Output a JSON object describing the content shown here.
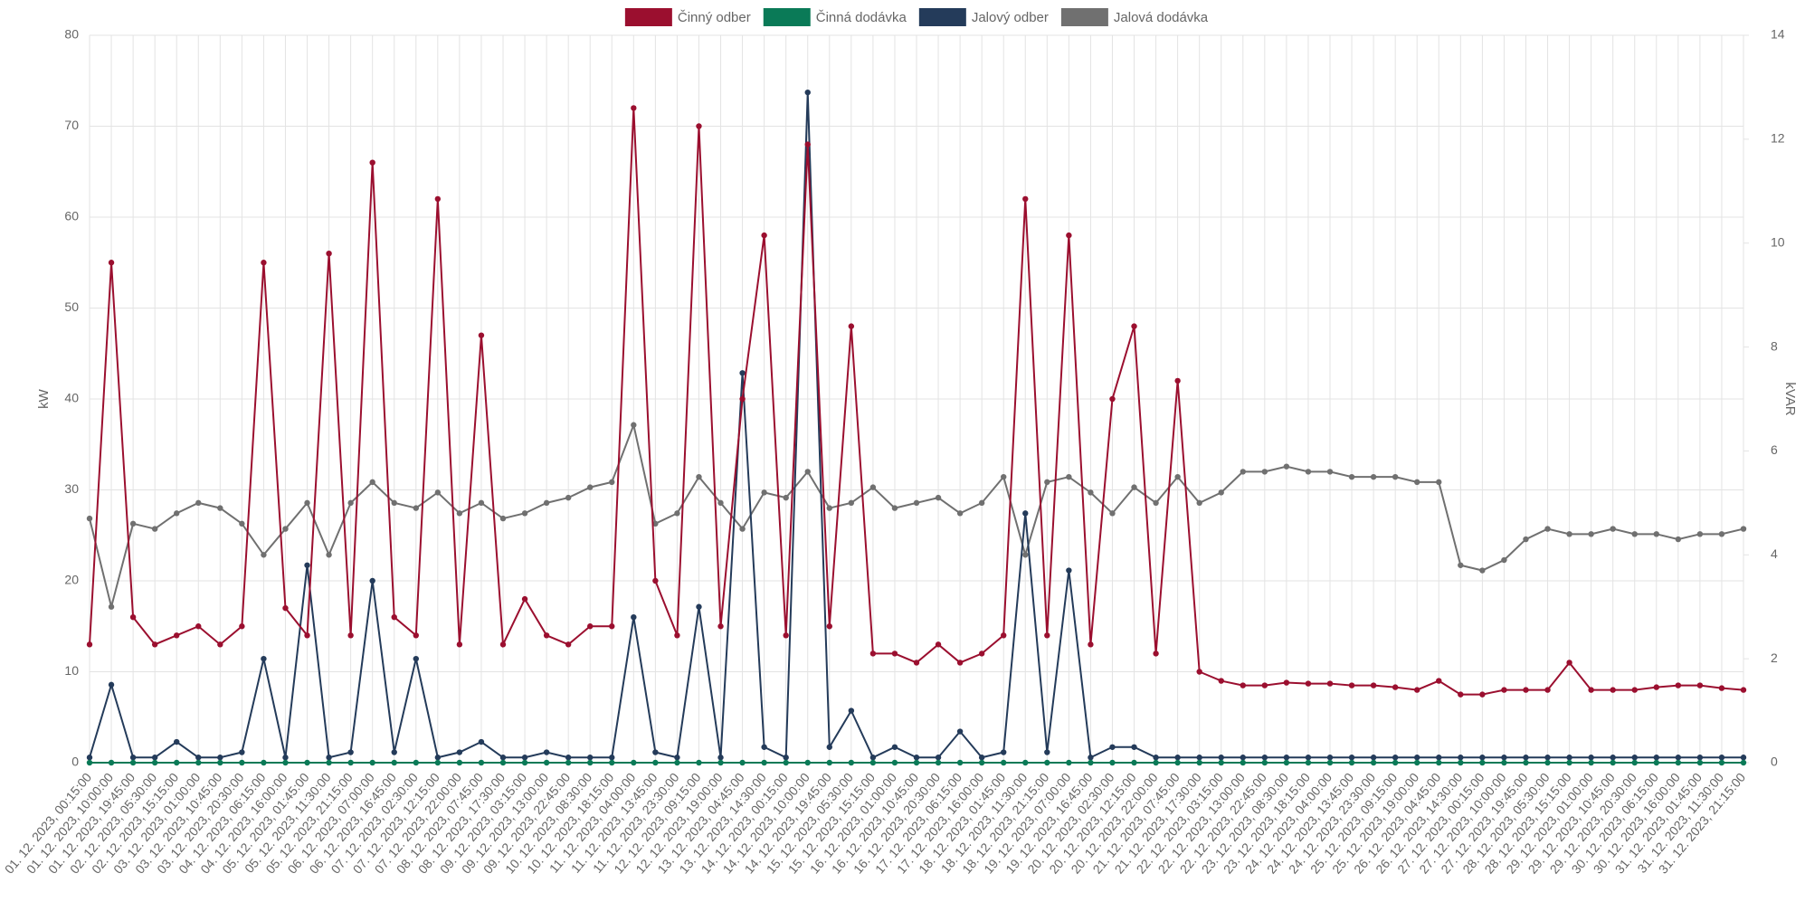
{
  "chart_data": {
    "type": "line",
    "y_label": "kW",
    "y2_label": "kVAR",
    "ylim": [
      0,
      80
    ],
    "yticks": [
      0,
      10,
      20,
      30,
      40,
      50,
      60,
      70,
      80
    ],
    "y2lim": [
      0,
      14
    ],
    "y2ticks": [
      0,
      2,
      4,
      6,
      8,
      10,
      12,
      14
    ],
    "grid": true,
    "legend": "top",
    "categories": [
      "01. 12. 2023, 00:15:00",
      "01. 12. 2023, 10:00:00",
      "01. 12. 2023, 19:45:00",
      "02. 12. 2023, 05:30:00",
      "02. 12. 2023, 15:15:00",
      "03. 12. 2023, 01:00:00",
      "03. 12. 2023, 10:45:00",
      "03. 12. 2023, 20:30:00",
      "04. 12. 2023, 06:15:00",
      "04. 12. 2023, 16:00:00",
      "05. 12. 2023, 01:45:00",
      "05. 12. 2023, 11:30:00",
      "05. 12. 2023, 21:15:00",
      "06. 12. 2023, 07:00:00",
      "06. 12. 2023, 16:45:00",
      "07. 12. 2023, 02:30:00",
      "07. 12. 2023, 12:15:00",
      "07. 12. 2023, 22:00:00",
      "08. 12. 2023, 07:45:00",
      "08. 12. 2023, 17:30:00",
      "09. 12. 2023, 03:15:00",
      "09. 12. 2023, 13:00:00",
      "09. 12. 2023, 22:45:00",
      "10. 12. 2023, 08:30:00",
      "10. 12. 2023, 18:15:00",
      "11. 12. 2023, 04:00:00",
      "11. 12. 2023, 13:45:00",
      "11. 12. 2023, 23:30:00",
      "12. 12. 2023, 09:15:00",
      "12. 12. 2023, 19:00:00",
      "13. 12. 2023, 04:45:00",
      "13. 12. 2023, 14:30:00",
      "14. 12. 2023, 00:15:00",
      "14. 12. 2023, 10:00:00",
      "14. 12. 2023, 19:45:00",
      "15. 12. 2023, 05:30:00",
      "15. 12. 2023, 15:15:00",
      "16. 12. 2023, 01:00:00",
      "16. 12. 2023, 10:45:00",
      "16. 12. 2023, 20:30:00",
      "17. 12. 2023, 06:15:00",
      "17. 12. 2023, 16:00:00",
      "18. 12. 2023, 01:45:00",
      "18. 12. 2023, 11:30:00",
      "18. 12. 2023, 21:15:00",
      "19. 12. 2023, 07:00:00",
      "19. 12. 2023, 16:45:00",
      "20. 12. 2023, 02:30:00",
      "20. 12. 2023, 12:15:00",
      "20. 12. 2023, 22:00:00",
      "21. 12. 2023, 07:45:00",
      "21. 12. 2023, 17:30:00",
      "22. 12. 2023, 03:15:00",
      "22. 12. 2023, 13:00:00",
      "22. 12. 2023, 22:45:00",
      "23. 12. 2023, 08:30:00",
      "23. 12. 2023, 18:15:00",
      "24. 12. 2023, 04:00:00",
      "24. 12. 2023, 13:45:00",
      "24. 12. 2023, 23:30:00",
      "25. 12. 2023, 09:15:00",
      "25. 12. 2023, 19:00:00",
      "26. 12. 2023, 04:45:00",
      "26. 12. 2023, 14:30:00",
      "27. 12. 2023, 00:15:00",
      "27. 12. 2023, 10:00:00",
      "27. 12. 2023, 19:45:00",
      "28. 12. 2023, 05:30:00",
      "28. 12. 2023, 15:15:00",
      "29. 12. 2023, 01:00:00",
      "29. 12. 2023, 10:45:00",
      "29. 12. 2023, 20:30:00",
      "30. 12. 2023, 06:15:00",
      "30. 12. 2023, 16:00:00",
      "31. 12. 2023, 01:45:00",
      "31. 12. 2023, 11:30:00",
      "31. 12. 2023, 21:15:00"
    ],
    "series": [
      {
        "name": "Činný odber",
        "color": "#9b0f2f",
        "axis": "y",
        "values": [
          13,
          55,
          16,
          13,
          14,
          15,
          13,
          15,
          55,
          17,
          14,
          56,
          14,
          66,
          16,
          14,
          62,
          13,
          47,
          13,
          18,
          14,
          13,
          15,
          15,
          72,
          20,
          14,
          70,
          15,
          40,
          58,
          14,
          68,
          15,
          48,
          12,
          12,
          11,
          13,
          11,
          12,
          14,
          62,
          14,
          58,
          13,
          40,
          48,
          12,
          42,
          10,
          9,
          8.5,
          8.5,
          8.8,
          8.7,
          8.7,
          8.5,
          8.5,
          8.3,
          8,
          9,
          7.5,
          7.5,
          8,
          8,
          8,
          11,
          8,
          8,
          8,
          8.3,
          8.5,
          8.5,
          8.2,
          8
        ]
      },
      {
        "name": "Činná dodávka",
        "color": "#0a7a57",
        "axis": "y",
        "values": [
          0,
          0,
          0,
          0,
          0,
          0,
          0,
          0,
          0,
          0,
          0,
          0,
          0,
          0,
          0,
          0,
          0,
          0,
          0,
          0,
          0,
          0,
          0,
          0,
          0,
          0,
          0,
          0,
          0,
          0,
          0,
          0,
          0,
          0,
          0,
          0,
          0,
          0,
          0,
          0,
          0,
          0,
          0,
          0,
          0,
          0,
          0,
          0,
          0,
          0,
          0,
          0,
          0,
          0,
          0,
          0,
          0,
          0,
          0,
          0,
          0,
          0,
          0,
          0,
          0,
          0,
          0,
          0,
          0,
          0,
          0,
          0,
          0,
          0,
          0,
          0,
          0
        ]
      },
      {
        "name": "Jalový odber",
        "color": "#243b5a",
        "axis": "y2",
        "values": [
          0.1,
          1.5,
          0.1,
          0.1,
          0.4,
          0.1,
          0.1,
          0.2,
          2.0,
          0.1,
          3.8,
          0.1,
          0.2,
          3.5,
          0.2,
          2.0,
          0.1,
          0.2,
          0.4,
          0.1,
          0.1,
          0.2,
          0.1,
          0.1,
          0.1,
          2.8,
          0.2,
          0.1,
          3.0,
          0.1,
          7.5,
          0.3,
          0.1,
          12.9,
          0.3,
          1.0,
          0.1,
          0.3,
          0.1,
          0.1,
          0.6,
          0.1,
          0.2,
          4.8,
          0.2,
          3.7,
          0.1,
          0.3,
          0.3,
          0.1,
          0.1,
          0.1,
          0.1,
          0.1,
          0.1,
          0.1,
          0.1,
          0.1,
          0.1,
          0.1,
          0.1,
          0.1,
          0.1,
          0.1,
          0.1,
          0.1,
          0.1,
          0.1,
          0.1,
          0.1,
          0.1,
          0.1,
          0.1,
          0.1,
          0.1,
          0.1,
          0.1
        ]
      },
      {
        "name": "Jalová dodávka",
        "color": "#707070",
        "axis": "y2",
        "values": [
          4.7,
          3.0,
          4.6,
          4.5,
          4.8,
          5.0,
          4.9,
          4.6,
          4.0,
          4.5,
          5.0,
          4.0,
          5.0,
          5.4,
          5.0,
          4.9,
          5.2,
          4.8,
          5.0,
          4.7,
          4.8,
          5.0,
          5.1,
          5.3,
          5.4,
          6.5,
          4.6,
          4.8,
          5.5,
          5.0,
          4.5,
          5.2,
          5.1,
          5.6,
          4.9,
          5.0,
          5.3,
          4.9,
          5.0,
          5.1,
          4.8,
          5.0,
          5.5,
          4.0,
          5.4,
          5.5,
          5.2,
          4.8,
          5.3,
          5.0,
          5.5,
          5.0,
          5.2,
          5.6,
          5.6,
          5.7,
          5.6,
          5.6,
          5.5,
          5.5,
          5.5,
          5.4,
          5.4,
          3.8,
          3.7,
          3.9,
          4.3,
          4.5,
          4.4,
          4.4,
          4.5,
          4.4,
          4.4,
          4.3,
          4.4,
          4.4,
          4.5
        ]
      }
    ]
  }
}
